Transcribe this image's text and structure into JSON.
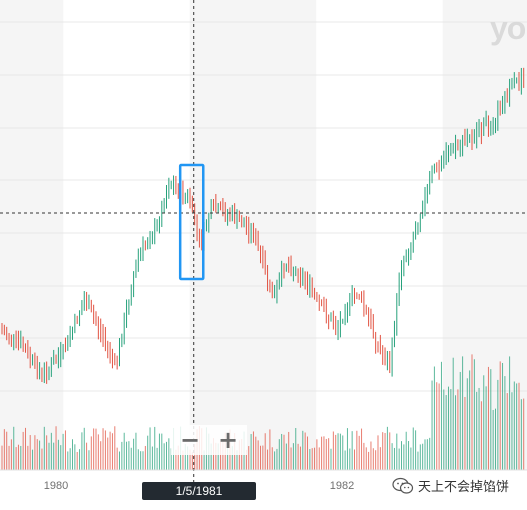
{
  "watermark": "yo",
  "x_axis": {
    "labels": [
      {
        "text": "1980",
        "date": "1980-01"
      },
      {
        "text": "1982",
        "date": "1982-01"
      }
    ]
  },
  "crosshair": {
    "date_label": "1/5/1981",
    "date": "1981-01-05"
  },
  "zoom": {
    "minus_label": "−",
    "plus_label": "+"
  },
  "attribution": {
    "text": "天上不会掉馅饼",
    "icon": "wechat-icon"
  },
  "colors": {
    "up": "#26a17b",
    "down": "#e15241",
    "highlight": "#2196f3",
    "crosshair": "#333333",
    "band": "#f5f5f5"
  },
  "chart_data": {
    "type": "candlestick",
    "x_range": [
      "1979-07",
      "1983-09"
    ],
    "highlight_range": [
      "1980-12",
      "1981-02"
    ],
    "price_path": [
      [
        "1979-07",
        330
      ],
      [
        "1979-09",
        345
      ],
      [
        "1979-11",
        376
      ],
      [
        "1980-01",
        352
      ],
      [
        "1980-03",
        300
      ],
      [
        "1980-04",
        320
      ],
      [
        "1980-06",
        366
      ],
      [
        "1980-08",
        258
      ],
      [
        "1980-10",
        225
      ],
      [
        "1980-11",
        183
      ],
      [
        "1981-01",
        200
      ],
      [
        "1981-02",
        245
      ],
      [
        "1981-03",
        208
      ],
      [
        "1981-05",
        215
      ],
      [
        "1981-07",
        232
      ],
      [
        "1981-08",
        268
      ],
      [
        "1981-09",
        300
      ],
      [
        "1981-10",
        262
      ],
      [
        "1981-12",
        280
      ],
      [
        "1982-01",
        300
      ],
      [
        "1982-03",
        330
      ],
      [
        "1982-04",
        303
      ],
      [
        "1982-05",
        292
      ],
      [
        "1982-07",
        350
      ],
      [
        "1982-08",
        368
      ],
      [
        "1982-09",
        265
      ],
      [
        "1982-10",
        245
      ],
      [
        "1982-12",
        172
      ],
      [
        "1983-02",
        148
      ],
      [
        "1983-04",
        135
      ],
      [
        "1983-06",
        118
      ],
      [
        "1983-07",
        95
      ],
      [
        "1983-09",
        72
      ]
    ]
  }
}
